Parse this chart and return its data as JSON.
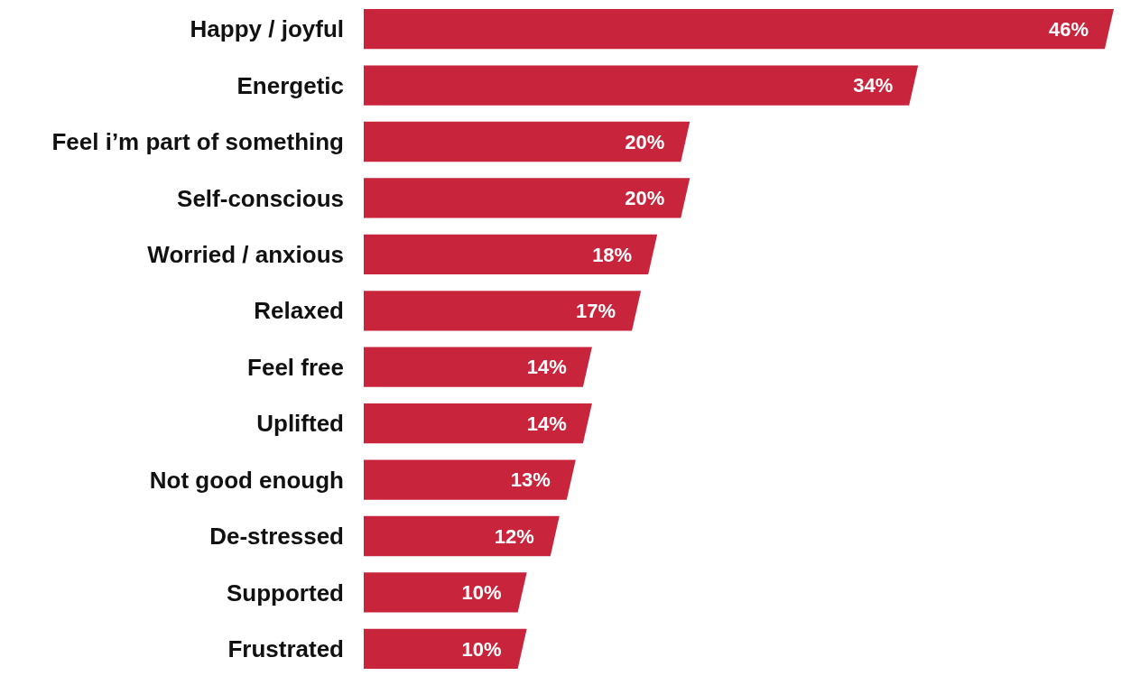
{
  "chart_data": {
    "type": "bar",
    "orientation": "horizontal",
    "color": "#c8253c",
    "categories": [
      "Happy / joyful",
      "Energetic",
      "Feel i’m part of something",
      "Self-conscious",
      "Worried / anxious",
      "Relaxed",
      "Feel free",
      "Uplifted",
      "Not good enough",
      "De-stressed",
      "Supported",
      "Frustrated"
    ],
    "values": [
      46,
      34,
      20,
      20,
      18,
      17,
      14,
      14,
      13,
      12,
      10,
      10
    ],
    "value_labels": [
      "46%",
      "34%",
      "20%",
      "20%",
      "18%",
      "17%",
      "14%",
      "14%",
      "13%",
      "12%",
      "10%",
      "10%"
    ]
  }
}
